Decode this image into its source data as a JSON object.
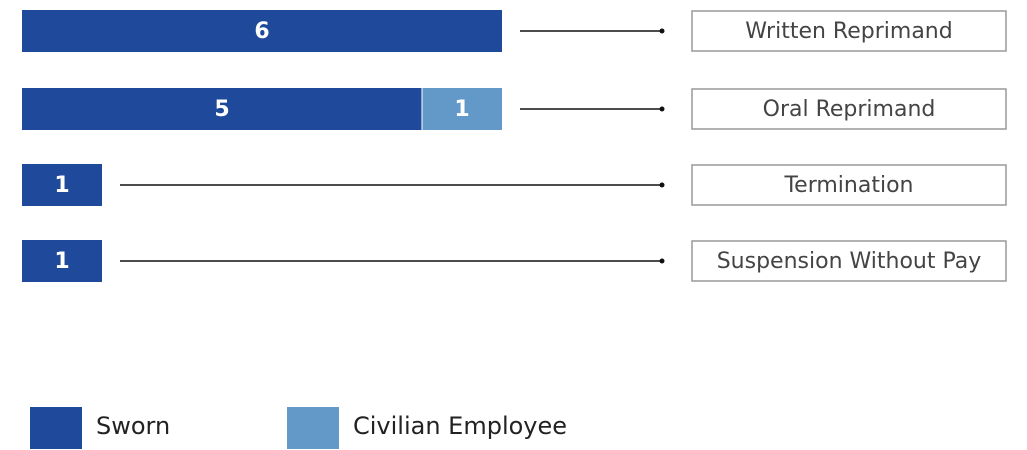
{
  "chart_data": {
    "type": "stacked-bar-horizontal",
    "categories": [
      "Written Reprimand",
      "Oral Reprimand",
      "Termination",
      "Suspension Without Pay"
    ],
    "series": [
      {
        "name": "Sworn",
        "color": "#1f4a9c",
        "values": [
          6,
          5,
          1,
          1
        ]
      },
      {
        "name": "Civilian Employee",
        "color": "#6399c9",
        "values": [
          0,
          1,
          0,
          0
        ]
      }
    ]
  }
}
